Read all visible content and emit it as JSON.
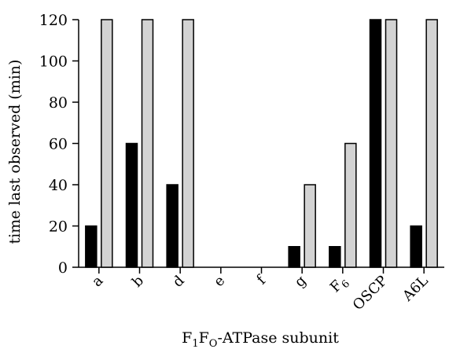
{
  "chart_data": {
    "type": "bar",
    "categories": [
      "a",
      "b",
      "d",
      "e",
      "f",
      "g",
      "F6",
      "OSCP",
      "A6L"
    ],
    "series": [
      {
        "values": [
          20,
          60,
          40,
          0,
          0,
          10,
          10,
          120,
          20
        ],
        "color": "#000000"
      },
      {
        "values": [
          120,
          120,
          120,
          0,
          0,
          40,
          60,
          120,
          120
        ],
        "color": "#d3d3d3"
      }
    ],
    "ylabel": "time last observed (min)",
    "xlabel": "F1FO-ATPase subunit",
    "ylim": [
      0,
      120
    ],
    "yticks": [
      0,
      20,
      40,
      60,
      80,
      100,
      120
    ],
    "grid": false,
    "legend": "none"
  }
}
